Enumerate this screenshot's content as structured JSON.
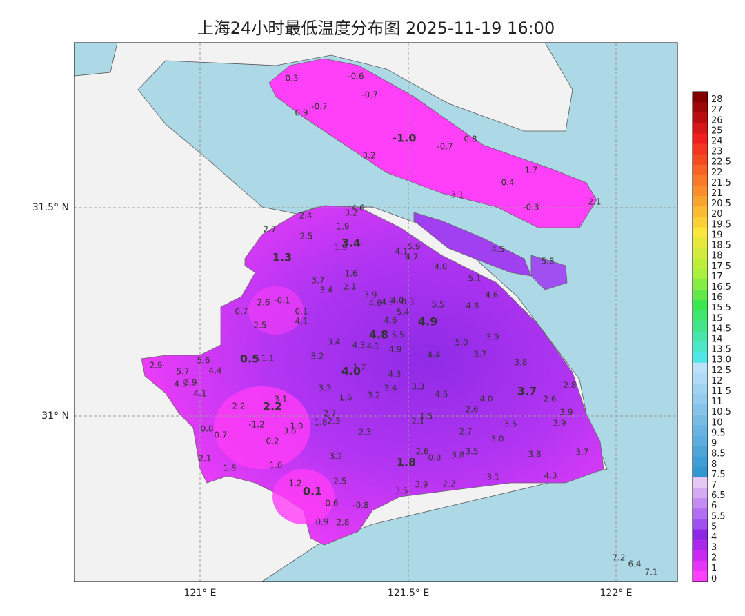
{
  "title": "上海24小时最低温度分布图 2025-11-19 16:00",
  "axes": {
    "lat_labels": [
      "31.5° N",
      "31° N"
    ],
    "lon_labels": [
      "121° E",
      "121.5° E",
      "122° E"
    ]
  },
  "colorbar": {
    "labels": [
      "28",
      "27",
      "26",
      "25",
      "24",
      "23",
      "22.5",
      "22",
      "21.5",
      "21",
      "20.5",
      "20",
      "19.5",
      "19",
      "18.5",
      "18",
      "17.5",
      "17",
      "16.5",
      "16",
      "15.5",
      "15",
      "14.5",
      "14",
      "13.5",
      "13.0",
      "12.5",
      "12",
      "11.5",
      "11",
      "10.5",
      "10",
      "9.5",
      "9",
      "8.5",
      "8",
      "7.5",
      "7",
      "6.5",
      "6",
      "5.5",
      "5",
      "4",
      "3",
      "2",
      "1",
      "0"
    ]
  },
  "stations": [
    "0.3",
    "-0.6",
    "-0.7",
    "-0.7",
    "0.9",
    "-1.0",
    "-0.7",
    "0.8",
    "3.2",
    "1.7",
    "0.4",
    "3.1",
    "-0.3",
    "2.1",
    "5.9",
    "4.5",
    "5.8",
    "4.6",
    "3.2",
    "2.4",
    "2.7",
    "1.9",
    "2.5",
    "1.9",
    "3.4",
    "4.1",
    "4.7",
    "1.3",
    "4.8",
    "1.6",
    "5.1",
    "3.7",
    "3.4",
    "2.1",
    "3.9",
    "4.6",
    "2.6",
    "-0.1",
    "4.6",
    "4.9",
    "4.0",
    "0.3",
    "5.5",
    "4.8",
    "0.7",
    "0.1",
    "5.4",
    "4.6",
    "4.1",
    "4.9",
    "2.5",
    "4.8",
    "5.5",
    "3.9",
    "3.4",
    "4.3",
    "4.1",
    "5.0",
    "4.9",
    "4.4",
    "3.7",
    "3.2",
    "0.5",
    "1.1",
    "5.6",
    "2.9",
    "3.8",
    "4.4",
    "5.7",
    "1.7",
    "4.0",
    "4.3",
    "4.5",
    "3.9",
    "2.8",
    "3.3",
    "3.4",
    "3.3",
    "3.7",
    "4.1",
    "1.6",
    "3.2",
    "4.5",
    "4.0",
    "2.6",
    "3.1",
    "2.2",
    "2.2",
    "2.6",
    "3.9",
    "2.7",
    "1.5",
    "2.1",
    "1.8",
    "2.3",
    "3.5",
    "3.9",
    "-1.2",
    "1.0",
    "0.8",
    "3.6",
    "0.7",
    "2.3",
    "2.7",
    "3.0",
    "0.2",
    "2.6",
    "0.8",
    "3.8",
    "3.5",
    "3.8",
    "3.7",
    "3.2",
    "2.1",
    "1.8",
    "1.8",
    "1.0",
    "3.1",
    "4.3",
    "2.5",
    "1.2",
    "3.9",
    "2.2",
    "0.1",
    "3.5",
    "0.6",
    "-0.8",
    "0.9",
    "2.8",
    "7.2",
    "6.4",
    "7.1"
  ]
}
